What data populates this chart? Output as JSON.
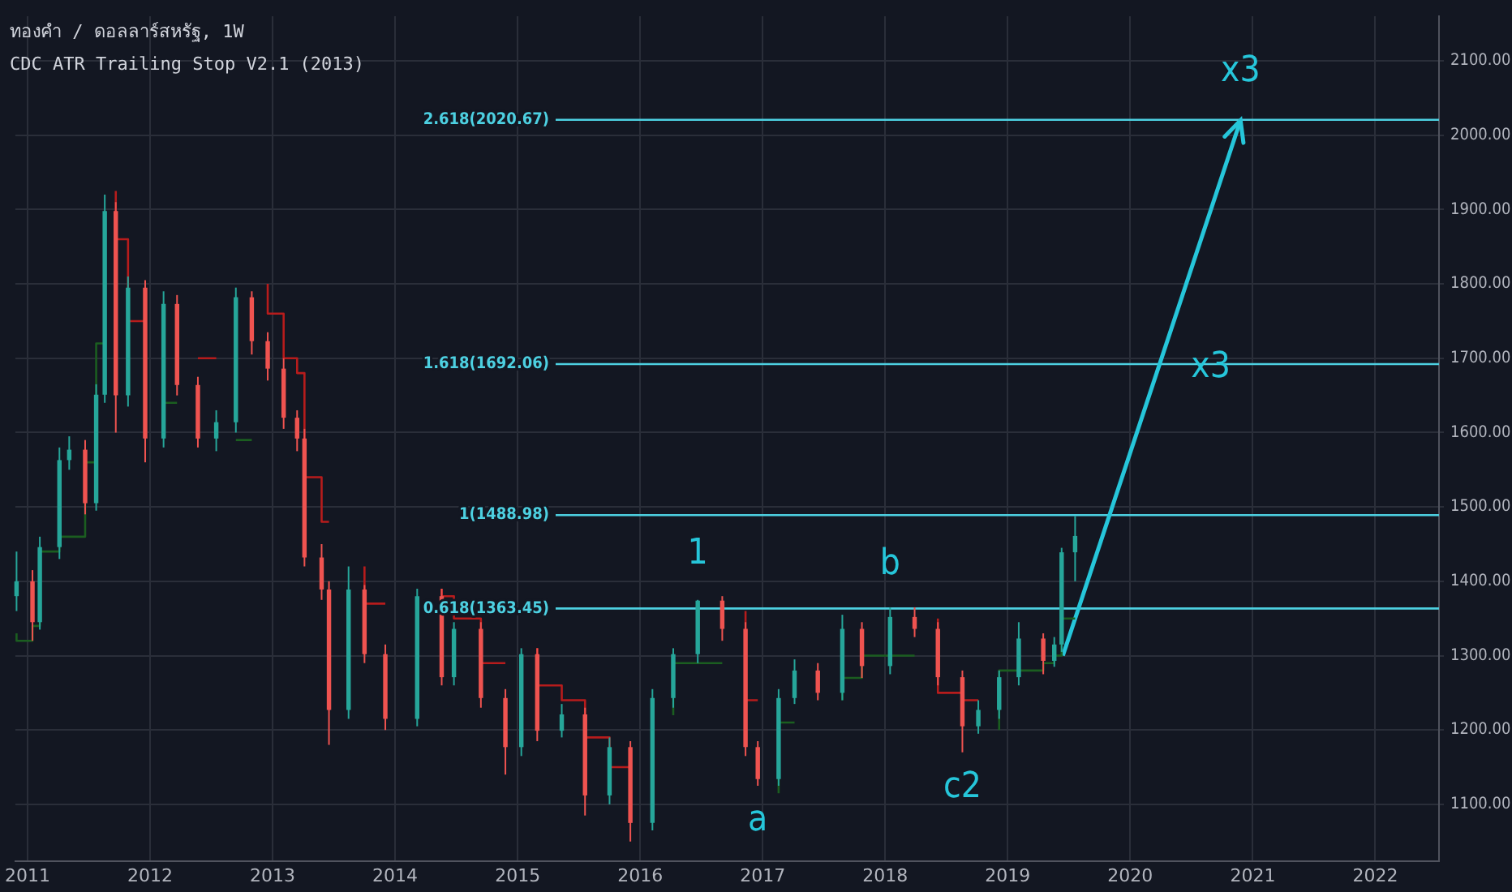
{
  "chart_data": {
    "type": "candlestick",
    "title": "ทองคำ / ดอลลาร์สหรัฐ, 1W",
    "subtitle": "CDC ATR Trailing Stop V2.1 (2013)",
    "x": [
      2010.91,
      2011.04,
      2011.1,
      2011.26,
      2011.34,
      2011.47,
      2011.56,
      2011.63,
      2011.72,
      2011.82,
      2011.96,
      2012.11,
      2012.22,
      2012.39,
      2012.54,
      2012.7,
      2012.83,
      2012.96,
      2013.09,
      2013.2,
      2013.26,
      2013.4,
      2013.46,
      2013.62,
      2013.75,
      2013.92,
      2014.18,
      2014.38,
      2014.48,
      2014.7,
      2014.9,
      2015.03,
      2015.16,
      2015.36,
      2015.55,
      2015.75,
      2015.92,
      2016.1,
      2016.27,
      2016.47,
      2016.67,
      2016.86,
      2016.96,
      2017.13,
      2017.26,
      2017.45,
      2017.65,
      2017.81,
      2018.04,
      2018.24,
      2018.43,
      2018.63,
      2018.76,
      2018.93,
      2019.09,
      2019.29,
      2019.38,
      2019.44,
      2019.55
    ],
    "ohlc": [
      [
        1380,
        1440,
        1360,
        1400
      ],
      [
        1400,
        1415,
        1320,
        1345
      ],
      [
        1345,
        1460,
        1335,
        1446
      ],
      [
        1446,
        1580,
        1430,
        1563
      ],
      [
        1563,
        1595,
        1550,
        1577
      ],
      [
        1577,
        1590,
        1490,
        1505
      ],
      [
        1505,
        1665,
        1495,
        1651
      ],
      [
        1651,
        1920,
        1640,
        1898
      ],
      [
        1898,
        1910,
        1600,
        1650
      ],
      [
        1650,
        1810,
        1635,
        1795
      ],
      [
        1795,
        1805,
        1560,
        1592
      ],
      [
        1592,
        1790,
        1580,
        1773
      ],
      [
        1773,
        1785,
        1650,
        1664
      ],
      [
        1664,
        1675,
        1580,
        1592
      ],
      [
        1592,
        1630,
        1575,
        1614
      ],
      [
        1614,
        1795,
        1600,
        1782
      ],
      [
        1782,
        1790,
        1705,
        1723
      ],
      [
        1723,
        1735,
        1670,
        1686
      ],
      [
        1686,
        1700,
        1605,
        1620
      ],
      [
        1620,
        1630,
        1575,
        1592
      ],
      [
        1592,
        1605,
        1420,
        1432
      ],
      [
        1432,
        1450,
        1375,
        1389
      ],
      [
        1389,
        1400,
        1180,
        1227
      ],
      [
        1227,
        1420,
        1215,
        1389
      ],
      [
        1389,
        1395,
        1290,
        1302
      ],
      [
        1302,
        1315,
        1200,
        1215
      ],
      [
        1215,
        1390,
        1205,
        1380
      ],
      [
        1380,
        1390,
        1260,
        1271
      ],
      [
        1271,
        1345,
        1260,
        1336
      ],
      [
        1336,
        1345,
        1230,
        1243
      ],
      [
        1243,
        1255,
        1140,
        1177
      ],
      [
        1177,
        1310,
        1165,
        1302
      ],
      [
        1302,
        1310,
        1185,
        1199
      ],
      [
        1199,
        1235,
        1190,
        1221
      ],
      [
        1221,
        1230,
        1085,
        1112
      ],
      [
        1112,
        1190,
        1100,
        1177
      ],
      [
        1177,
        1185,
        1050,
        1075
      ],
      [
        1075,
        1255,
        1065,
        1243
      ],
      [
        1243,
        1310,
        1230,
        1302
      ],
      [
        1302,
        1375,
        1290,
        1374
      ],
      [
        1374,
        1380,
        1320,
        1336
      ],
      [
        1336,
        1345,
        1165,
        1177
      ],
      [
        1177,
        1185,
        1125,
        1134
      ],
      [
        1134,
        1255,
        1125,
        1243
      ],
      [
        1243,
        1295,
        1235,
        1280
      ],
      [
        1280,
        1290,
        1240,
        1250
      ],
      [
        1250,
        1355,
        1240,
        1336
      ],
      [
        1336,
        1345,
        1270,
        1286
      ],
      [
        1286,
        1365,
        1275,
        1352
      ],
      [
        1352,
        1365,
        1325,
        1336
      ],
      [
        1336,
        1345,
        1260,
        1271
      ],
      [
        1271,
        1280,
        1170,
        1205
      ],
      [
        1205,
        1240,
        1195,
        1227
      ],
      [
        1227,
        1280,
        1215,
        1271
      ],
      [
        1271,
        1345,
        1260,
        1323
      ],
      [
        1323,
        1330,
        1275,
        1293
      ],
      [
        1293,
        1325,
        1285,
        1315
      ],
      [
        1315,
        1445,
        1305,
        1439
      ],
      [
        1439,
        1488,
        1400,
        1461
      ]
    ],
    "series": [
      {
        "type": "step",
        "color": "#b71c1c",
        "values": [
          null,
          null,
          null,
          null,
          null,
          null,
          null,
          null,
          1925,
          1860,
          1750,
          null,
          null,
          1700,
          1700,
          null,
          null,
          1800,
          1760,
          1700,
          1680,
          1540,
          1480,
          null,
          1420,
          1370,
          null,
          1390,
          1380,
          1350,
          1290,
          null,
          1310,
          1260,
          1240,
          1190,
          1150,
          null,
          null,
          null,
          null,
          1360,
          1240,
          null,
          null,
          null,
          null,
          null,
          null,
          null,
          1350,
          1250,
          1240,
          null,
          null,
          null,
          null,
          null,
          null
        ]
      },
      {
        "type": "step",
        "color": "#1b5e20",
        "values": [
          1330,
          1320,
          1340,
          1440,
          1460,
          1460,
          1560,
          1720,
          null,
          null,
          null,
          1640,
          1640,
          null,
          null,
          1590,
          1590,
          null,
          null,
          null,
          null,
          null,
          null,
          null,
          null,
          null,
          null,
          null,
          null,
          null,
          null,
          null,
          null,
          null,
          null,
          null,
          null,
          null,
          1220,
          1290,
          1290,
          null,
          null,
          1115,
          1210,
          null,
          1240,
          1270,
          1300,
          1300,
          null,
          null,
          null,
          1200,
          1280,
          1280,
          1290,
          1300,
          1350
        ]
      },
      {
        "type": "line",
        "color": "#26c6da",
        "x": [
          2019.45,
          2020.9
        ],
        "values": [
          1300,
          2020
        ]
      }
    ],
    "ref_lines": [
      {
        "axis": "y",
        "value": 2020.67,
        "label": "2.618(2020.67)",
        "color": "#4dd0e1"
      },
      {
        "axis": "y",
        "value": 1692.06,
        "label": "1.618(1692.06)",
        "color": "#4dd0e1"
      },
      {
        "axis": "y",
        "value": 1488.98,
        "label": "1(1488.98)",
        "color": "#4dd0e1"
      },
      {
        "axis": "y",
        "value": 1363.45,
        "label": "0.618(1363.45)",
        "color": "#4dd0e1"
      }
    ],
    "annotations": [
      {
        "text": "1",
        "x": 2016.47,
        "y": 1380
      },
      {
        "text": "a",
        "x": 2016.96,
        "y": 1125
      },
      {
        "text": "b",
        "x": 2018.04,
        "y": 1365
      },
      {
        "text": "c2",
        "x": 2018.63,
        "y": 1170
      },
      {
        "text": "x3",
        "x": 2020.26,
        "y": 1700
      },
      {
        "text": "x3",
        "x": 2020.9,
        "y": 2020
      }
    ],
    "xlim": [
      2010.9,
      2022.52
    ],
    "xticks": [
      2011,
      2012,
      2013,
      2014,
      2015,
      2016,
      2017,
      2018,
      2019,
      2020,
      2021,
      2022
    ],
    "ylim": [
      1024,
      2160
    ],
    "yticks": [
      {
        "value": 1100,
        "label": "1100.00"
      },
      {
        "value": 1200,
        "label": "1200.00"
      },
      {
        "value": 1300,
        "label": "1300.00"
      },
      {
        "value": 1400,
        "label": "1400.00"
      },
      {
        "value": 1500,
        "label": "1500.00"
      },
      {
        "value": 1600,
        "label": "1600.00"
      },
      {
        "value": 1700,
        "label": "1700.00"
      },
      {
        "value": 1800,
        "label": "1800.00"
      },
      {
        "value": 1900,
        "label": "1900.00"
      },
      {
        "value": 2000,
        "label": "2000.00"
      },
      {
        "value": 2100,
        "label": "2100.00"
      }
    ],
    "grid": true,
    "legend": false
  }
}
